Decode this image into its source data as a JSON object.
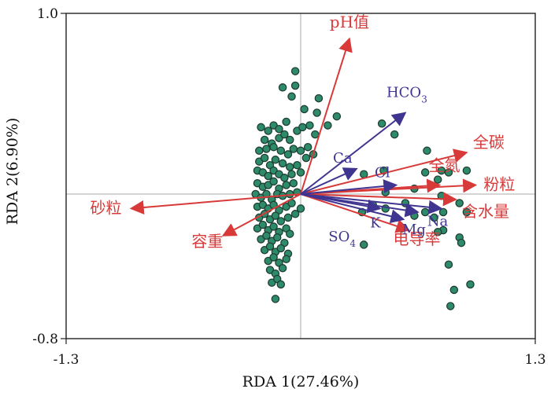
{
  "chart_data": {
    "type": "scatter",
    "subtype": "rda-biplot",
    "title": "",
    "xlabel": "RDA 1(27.46%)",
    "ylabel": "RDA 2(6.90%)",
    "xlim": [
      -1.3,
      1.3
    ],
    "ylim": [
      -0.8,
      1.0
    ],
    "x_ticks": [
      -1.3,
      1.3
    ],
    "x_tick_labels": [
      "-1.3",
      "1.3"
    ],
    "y_ticks": [
      -0.8,
      1.0
    ],
    "y_tick_labels": [
      "-0.8",
      "1.0"
    ],
    "grid": false,
    "reference_lines": [
      0,
      0
    ],
    "colors": {
      "points_fill": "#2e8b6a",
      "points_stroke": "#1f3d33",
      "vector_red": "#d83a3a",
      "vector_blue": "#3f3591",
      "label_red": "#d83a3a",
      "label_blue": "#3f3591"
    },
    "vectors": [
      {
        "name": "pH值",
        "group": "red",
        "x": 0.27,
        "y": 0.86
      },
      {
        "name": "全碳",
        "group": "red",
        "x": 0.92,
        "y": 0.23
      },
      {
        "name": "全氮",
        "group": "red",
        "x": 0.77,
        "y": 0.05
      },
      {
        "name": "粉粒",
        "group": "red",
        "x": 0.97,
        "y": 0.05
      },
      {
        "name": "含水量",
        "group": "red",
        "x": 0.86,
        "y": -0.03
      },
      {
        "name": "砂粒",
        "group": "red",
        "x": -0.94,
        "y": -0.08
      },
      {
        "name": "容重",
        "group": "red",
        "x": -0.43,
        "y": -0.23
      },
      {
        "name": "电导率",
        "group": "red",
        "x": 0.6,
        "y": -0.2
      },
      {
        "name": "HCO3",
        "group": "blue",
        "x": 0.58,
        "y": 0.45
      },
      {
        "name": "Ca",
        "group": "blue",
        "x": 0.31,
        "y": 0.14
      },
      {
        "name": "Cl",
        "group": "blue",
        "x": 0.53,
        "y": 0.05
      },
      {
        "name": "Na",
        "group": "blue",
        "x": 0.78,
        "y": -0.08
      },
      {
        "name": "Mg",
        "group": "blue",
        "x": 0.65,
        "y": -0.1
      },
      {
        "name": "K",
        "group": "blue",
        "x": 0.44,
        "y": -0.08
      },
      {
        "name": "SO4",
        "group": "blue",
        "x": 0.57,
        "y": -0.14
      }
    ],
    "points": [
      [
        -0.03,
        0.68
      ],
      [
        -0.1,
        0.59
      ],
      [
        -0.03,
        0.6
      ],
      [
        -0.05,
        0.54
      ],
      [
        0.1,
        0.53
      ],
      [
        0.2,
        0.43
      ],
      [
        0.15,
        0.38
      ],
      [
        0.09,
        0.45
      ],
      [
        0.02,
        0.47
      ],
      [
        -0.22,
        0.37
      ],
      [
        -0.18,
        0.35
      ],
      [
        -0.15,
        0.38
      ],
      [
        -0.12,
        0.36
      ],
      [
        -0.08,
        0.4
      ],
      [
        -0.2,
        0.3
      ],
      [
        -0.16,
        0.28
      ],
      [
        -0.12,
        0.31
      ],
      [
        -0.09,
        0.33
      ],
      [
        -0.06,
        0.3
      ],
      [
        -0.02,
        0.35
      ],
      [
        0.01,
        0.37
      ],
      [
        0.05,
        0.38
      ],
      [
        0.08,
        0.33
      ],
      [
        -0.23,
        0.24
      ],
      [
        -0.19,
        0.25
      ],
      [
        -0.15,
        0.26
      ],
      [
        -0.11,
        0.24
      ],
      [
        -0.07,
        0.22
      ],
      [
        -0.04,
        0.25
      ],
      [
        0.0,
        0.24
      ],
      [
        0.04,
        0.26
      ],
      [
        0.07,
        0.22
      ],
      [
        0.03,
        0.2
      ],
      [
        -0.23,
        0.18
      ],
      [
        -0.2,
        0.2
      ],
      [
        -0.17,
        0.16
      ],
      [
        -0.14,
        0.19
      ],
      [
        -0.1,
        0.17
      ],
      [
        -0.06,
        0.15
      ],
      [
        -0.02,
        0.16
      ],
      [
        -0.24,
        0.13
      ],
      [
        -0.21,
        0.12
      ],
      [
        -0.18,
        0.1
      ],
      [
        -0.15,
        0.13
      ],
      [
        -0.12,
        0.11
      ],
      [
        -0.09,
        0.09
      ],
      [
        -0.05,
        0.11
      ],
      [
        0.0,
        0.12
      ],
      [
        -0.24,
        0.06
      ],
      [
        -0.21,
        0.04
      ],
      [
        -0.18,
        0.05
      ],
      [
        -0.15,
        0.07
      ],
      [
        -0.12,
        0.03
      ],
      [
        -0.08,
        0.05
      ],
      [
        -0.04,
        0.06
      ],
      [
        -0.25,
        0.0
      ],
      [
        -0.22,
        -0.02
      ],
      [
        -0.19,
        0.0
      ],
      [
        -0.16,
        -0.03
      ],
      [
        -0.13,
        0.0
      ],
      [
        -0.1,
        -0.01
      ],
      [
        -0.06,
        0.0
      ],
      [
        -0.02,
        0.01
      ],
      [
        -0.24,
        -0.07
      ],
      [
        -0.21,
        -0.06
      ],
      [
        -0.18,
        -0.08
      ],
      [
        -0.15,
        -0.06
      ],
      [
        -0.12,
        -0.09
      ],
      [
        -0.08,
        -0.07
      ],
      [
        -0.05,
        -0.05
      ],
      [
        0.0,
        -0.08
      ],
      [
        -0.23,
        -0.13
      ],
      [
        -0.2,
        -0.11
      ],
      [
        -0.17,
        -0.14
      ],
      [
        -0.14,
        -0.12
      ],
      [
        -0.11,
        -0.15
      ],
      [
        -0.07,
        -0.13
      ],
      [
        -0.03,
        -0.11
      ],
      [
        -0.24,
        -0.19
      ],
      [
        -0.21,
        -0.17
      ],
      [
        -0.18,
        -0.2
      ],
      [
        -0.15,
        -0.18
      ],
      [
        -0.12,
        -0.21
      ],
      [
        -0.08,
        -0.19
      ],
      [
        -0.22,
        -0.25
      ],
      [
        -0.19,
        -0.23
      ],
      [
        -0.16,
        -0.26
      ],
      [
        -0.13,
        -0.24
      ],
      [
        -0.09,
        -0.27
      ],
      [
        -0.06,
        -0.22
      ],
      [
        -0.2,
        -0.31
      ],
      [
        -0.17,
        -0.29
      ],
      [
        -0.14,
        -0.32
      ],
      [
        -0.11,
        -0.3
      ],
      [
        -0.07,
        -0.33
      ],
      [
        -0.18,
        -0.37
      ],
      [
        -0.15,
        -0.35
      ],
      [
        -0.12,
        -0.38
      ],
      [
        -0.08,
        -0.36
      ],
      [
        -0.17,
        -0.42
      ],
      [
        -0.14,
        -0.44
      ],
      [
        -0.1,
        -0.41
      ],
      [
        -0.16,
        -0.49
      ],
      [
        -0.13,
        -0.47
      ],
      [
        -0.11,
        -0.5
      ],
      [
        -0.14,
        -0.58
      ],
      [
        0.45,
        0.39
      ],
      [
        0.52,
        0.33
      ],
      [
        0.46,
        0.13
      ],
      [
        0.35,
        0.11
      ],
      [
        0.47,
        0.01
      ],
      [
        0.63,
        0.03
      ],
      [
        0.76,
        0.08
      ],
      [
        0.69,
        0.12
      ],
      [
        0.78,
        0.13
      ],
      [
        0.82,
        0.12
      ],
      [
        0.7,
        0.24
      ],
      [
        0.92,
        0.13
      ],
      [
        0.78,
        -0.01
      ],
      [
        0.92,
        -0.1
      ],
      [
        0.88,
        -0.24
      ],
      [
        0.89,
        -0.27
      ],
      [
        0.79,
        -0.2
      ],
      [
        0.69,
        -0.1
      ],
      [
        0.76,
        -0.21
      ],
      [
        0.58,
        -0.05
      ],
      [
        0.56,
        -0.19
      ],
      [
        0.47,
        -0.08
      ],
      [
        0.34,
        -0.1
      ],
      [
        0.4,
        -0.06
      ],
      [
        0.74,
        -0.13
      ],
      [
        0.79,
        -0.1
      ],
      [
        0.88,
        -0.05
      ],
      [
        0.53,
        -0.13
      ],
      [
        0.35,
        -0.28
      ],
      [
        0.63,
        -0.12
      ],
      [
        0.82,
        -0.39
      ],
      [
        0.94,
        -0.5
      ],
      [
        0.85,
        -0.53
      ],
      [
        0.83,
        -0.62
      ]
    ]
  }
}
